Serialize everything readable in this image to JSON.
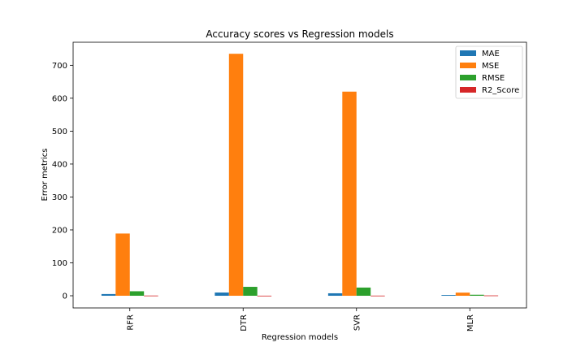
{
  "chart_data": {
    "type": "bar",
    "title": "Accuracy scores vs Regression models",
    "xlabel": "Regression models",
    "ylabel": "Error metrics",
    "categories": [
      "RFR",
      "DTR",
      "SVR",
      "MLR"
    ],
    "series": [
      {
        "name": "MAE",
        "color": "#1f77b4",
        "values": [
          5.2,
          9.8,
          7.5,
          2.3
        ]
      },
      {
        "name": "MSE",
        "color": "#ff7f0e",
        "values": [
          189,
          735,
          620,
          9.5
        ]
      },
      {
        "name": "RMSE",
        "color": "#2ca02c",
        "values": [
          13.7,
          27.1,
          24.9,
          3.1
        ]
      },
      {
        "name": "R2_Score",
        "color": "#d62728",
        "values": [
          0.62,
          0.25,
          0.45,
          0.99
        ]
      }
    ],
    "ylim": [
      -37,
      770
    ],
    "yticks": [
      0,
      100,
      200,
      300,
      400,
      500,
      600,
      700
    ],
    "legend_position": "top-right",
    "grid": false
  }
}
